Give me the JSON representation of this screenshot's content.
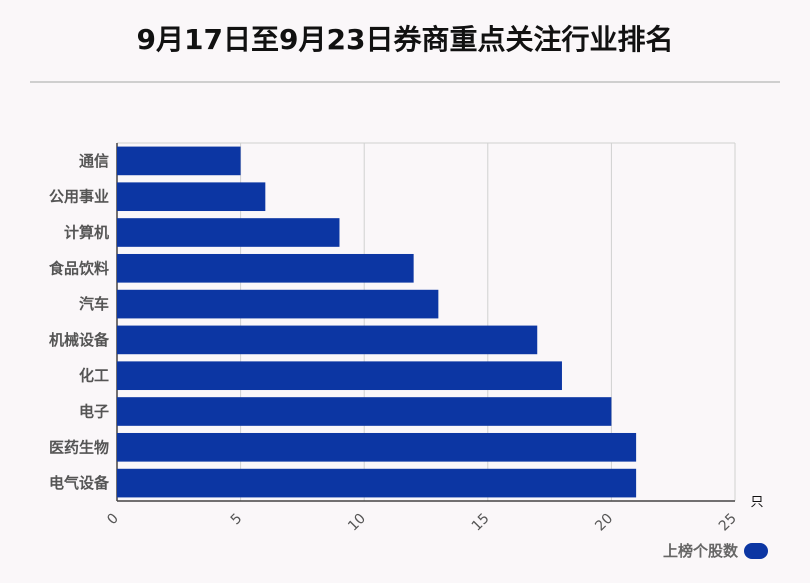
{
  "title": "9月17日至9月23日券商重点关注行业排名",
  "colors": {
    "bar": "#0c36a3",
    "grid": "#d0d0d0",
    "axis": "#444444",
    "label": "#555555"
  },
  "chart_data": {
    "type": "bar",
    "orientation": "horizontal",
    "categories": [
      "通信",
      "公用事业",
      "计算机",
      "食品饮料",
      "汽车",
      "机械设备",
      "化工",
      "电子",
      "医药生物",
      "电气设备"
    ],
    "series": [
      {
        "name": "上榜个股数",
        "values": [
          5,
          6,
          9,
          12,
          13,
          17,
          18,
          20,
          21,
          21
        ]
      }
    ],
    "xlim": [
      0,
      25
    ],
    "xticks": [
      "0",
      "5",
      "10",
      "15",
      "20",
      "25"
    ],
    "xunit": "只",
    "grid": true,
    "legend": "bottom-right"
  }
}
